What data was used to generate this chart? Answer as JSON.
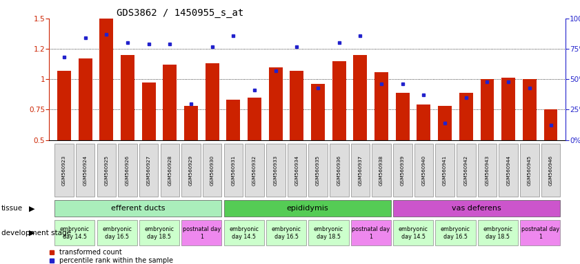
{
  "title": "GDS3862 / 1450955_s_at",
  "samples": [
    "GSM560923",
    "GSM560924",
    "GSM560925",
    "GSM560926",
    "GSM560927",
    "GSM560928",
    "GSM560929",
    "GSM560930",
    "GSM560931",
    "GSM560932",
    "GSM560933",
    "GSM560934",
    "GSM560935",
    "GSM560936",
    "GSM560937",
    "GSM560938",
    "GSM560939",
    "GSM560940",
    "GSM560941",
    "GSM560942",
    "GSM560943",
    "GSM560944",
    "GSM560945",
    "GSM560946"
  ],
  "transformed_count": [
    1.07,
    1.17,
    1.5,
    1.2,
    0.97,
    1.12,
    0.78,
    1.13,
    0.83,
    0.85,
    1.1,
    1.07,
    0.96,
    1.15,
    1.2,
    1.06,
    0.89,
    0.79,
    0.78,
    0.89,
    1.0,
    1.01,
    1.0,
    0.75
  ],
  "percentile_rank": [
    68,
    84,
    87,
    80,
    79,
    79,
    30,
    77,
    86,
    41,
    57,
    77,
    43,
    80,
    86,
    46,
    46,
    37,
    14,
    35,
    48,
    48,
    43,
    12
  ],
  "ylim_left": [
    0.5,
    1.5
  ],
  "ylim_right": [
    0,
    100
  ],
  "yticks_left": [
    0.5,
    0.75,
    1.0,
    1.25,
    1.5
  ],
  "yticks_right": [
    0,
    25,
    50,
    75,
    100
  ],
  "bar_color": "#CC2200",
  "dot_color": "#2222CC",
  "tissues": [
    {
      "label": "efferent ducts",
      "start": 0,
      "end": 7,
      "color": "#AAEEBB"
    },
    {
      "label": "epididymis",
      "start": 8,
      "end": 15,
      "color": "#55CC55"
    },
    {
      "label": "vas deferens",
      "start": 16,
      "end": 23,
      "color": "#CC55CC"
    }
  ],
  "dev_stages": [
    {
      "label": "embryonic\nday 14.5",
      "indices": [
        0,
        1
      ],
      "color": "#CCFFCC"
    },
    {
      "label": "embryonic\nday 16.5",
      "indices": [
        2,
        3
      ],
      "color": "#CCFFCC"
    },
    {
      "label": "embryonic\nday 18.5",
      "indices": [
        4,
        5
      ],
      "color": "#CCFFCC"
    },
    {
      "label": "postnatal day\n1",
      "indices": [
        6,
        7
      ],
      "color": "#EE88EE"
    },
    {
      "label": "embryonic\nday 14.5",
      "indices": [
        8,
        9
      ],
      "color": "#CCFFCC"
    },
    {
      "label": "embryonic\nday 16.5",
      "indices": [
        10,
        11
      ],
      "color": "#CCFFCC"
    },
    {
      "label": "embryonic\nday 18.5",
      "indices": [
        12,
        13
      ],
      "color": "#CCFFCC"
    },
    {
      "label": "postnatal day\n1",
      "indices": [
        14,
        15
      ],
      "color": "#EE88EE"
    },
    {
      "label": "embryonic\nday 14.5",
      "indices": [
        16,
        17
      ],
      "color": "#CCFFCC"
    },
    {
      "label": "embryonic\nday 16.5",
      "indices": [
        18,
        19
      ],
      "color": "#CCFFCC"
    },
    {
      "label": "embryonic\nday 18.5",
      "indices": [
        20,
        21
      ],
      "color": "#CCFFCC"
    },
    {
      "label": "postnatal day\n1",
      "indices": [
        22,
        23
      ],
      "color": "#EE88EE"
    }
  ],
  "legend_items": [
    {
      "label": "transformed count",
      "color": "#CC2200"
    },
    {
      "label": "percentile rank within the sample",
      "color": "#2222CC"
    }
  ],
  "fig_width": 8.41,
  "fig_height": 3.84,
  "dpi": 100
}
